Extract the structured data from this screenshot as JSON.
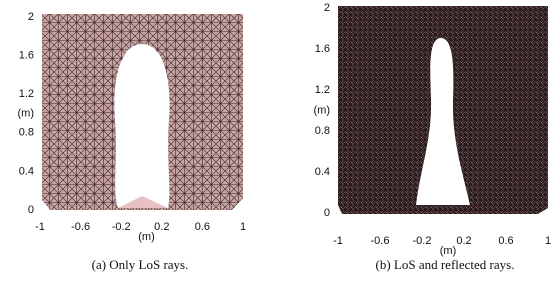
{
  "chart_data": [
    {
      "type": "mesh",
      "xlim": [
        -1,
        1
      ],
      "ylim": [
        0,
        2
      ],
      "xticks": [
        -1,
        -0.6,
        -0.2,
        0.2,
        0.6,
        1
      ],
      "yticks": [
        0,
        0.4,
        0.8,
        1.2,
        1.6,
        2
      ],
      "xlabel": "(m)",
      "ylabel": "(m)",
      "caption": "(a) Only LoS rays."
    },
    {
      "type": "mesh",
      "xlim": [
        -1,
        1
      ],
      "ylim": [
        0,
        2
      ],
      "xticks": [
        -1,
        -0.6,
        -0.2,
        0.2,
        0.6,
        1
      ],
      "yticks": [
        0,
        0.4,
        0.8,
        1.2,
        1.6,
        2
      ],
      "xlabel": "(m)",
      "ylabel": "(m)",
      "caption": "(b) LoS and reflected rays."
    }
  ]
}
